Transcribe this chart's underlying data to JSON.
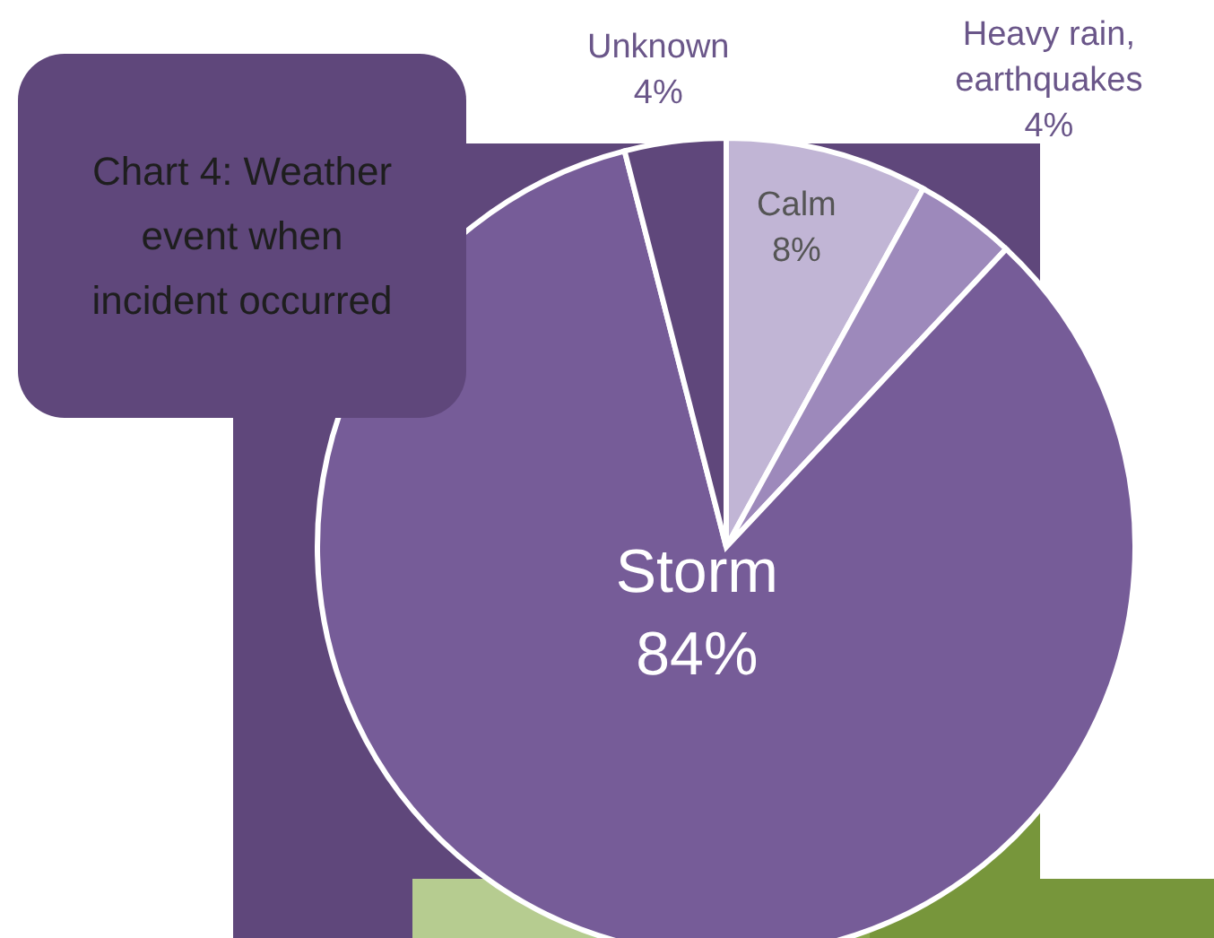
{
  "chart_data": {
    "type": "pie",
    "title": "Chart 4: Weather event when incident occurred",
    "categories": [
      "Calm",
      "Heavy rain, earthquakes",
      "Storm",
      "Unknown"
    ],
    "values": [
      8,
      4,
      84,
      4
    ],
    "colors": [
      "#c1b5d5",
      "#9d89bb",
      "#765c98",
      "#5f477b"
    ],
    "value_labels": [
      "8%",
      "4%",
      "84%",
      "4%"
    ]
  }
}
